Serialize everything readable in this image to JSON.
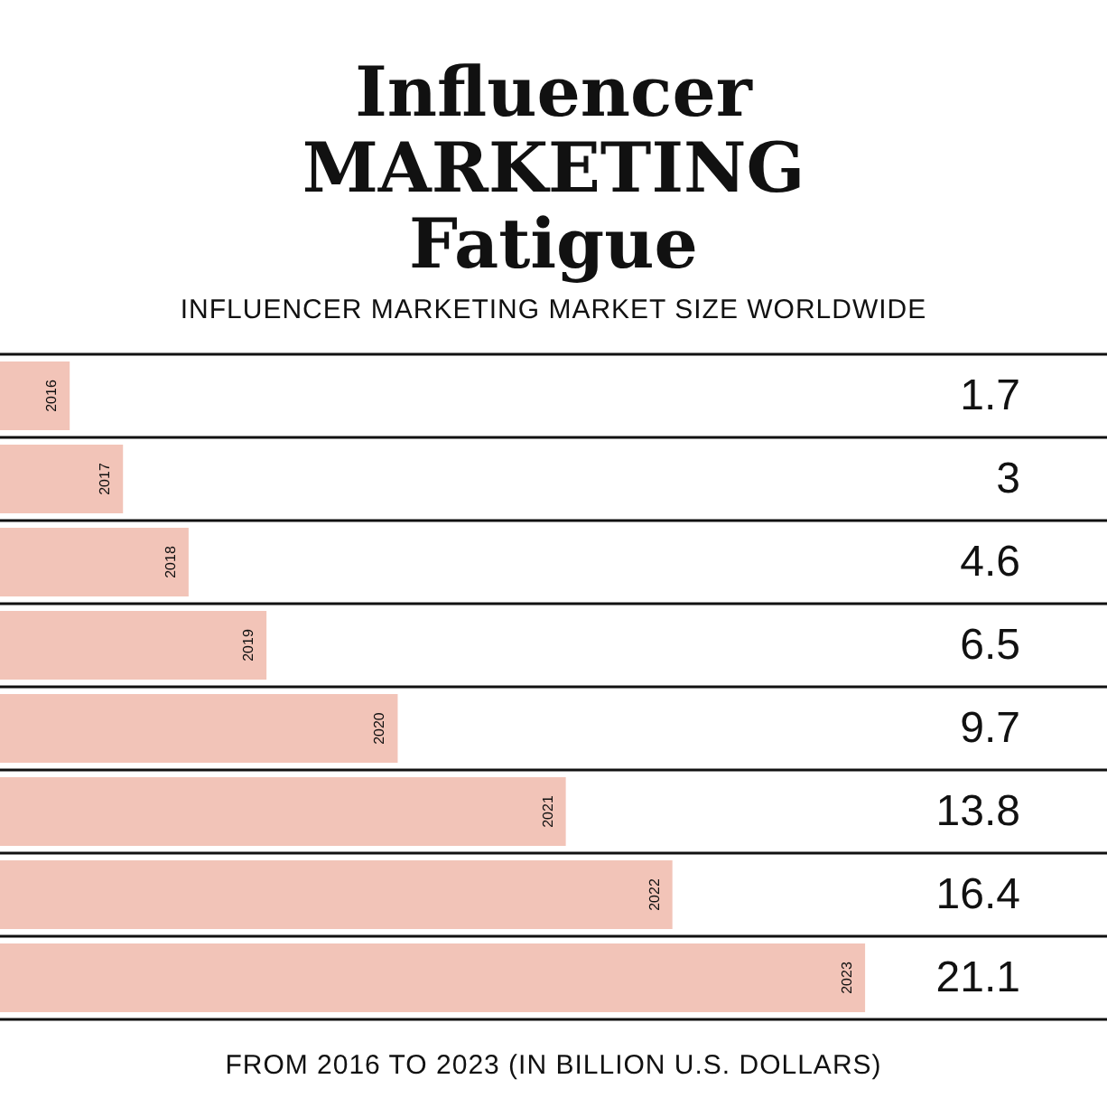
{
  "chart_data": {
    "type": "bar",
    "orientation": "horizontal",
    "title": "Influencer MARKETING Fatigue",
    "subtitle": "INFLUENCER MARKETING MARKET SIZE WORLDWIDE",
    "annotations": [
      "FROM 2016 TO 2023 (IN BILLION U.S. DOLLARS)"
    ],
    "categories": [
      "2016",
      "2017",
      "2018",
      "2019",
      "2020",
      "2021",
      "2022",
      "2023"
    ],
    "values": [
      1.7,
      3,
      4.6,
      6.5,
      9.7,
      13.8,
      16.4,
      21.1
    ],
    "color": "#f2c4b8",
    "xlim": [
      0,
      27
    ],
    "data_labels": true,
    "grid": "y"
  }
}
